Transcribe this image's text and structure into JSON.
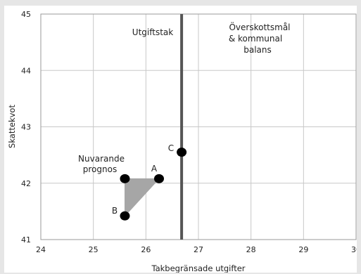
{
  "chart_data": {
    "type": "scatter",
    "xlabel": "Takbegränsade utgifter",
    "ylabel": "Skattekvot",
    "xlim": [
      24,
      30
    ],
    "ylim": [
      41,
      45
    ],
    "xticks": [
      "24",
      "25",
      "26",
      "27",
      "28",
      "29",
      "30"
    ],
    "yticks": [
      "41",
      "42",
      "43",
      "44",
      "45"
    ],
    "grid": true,
    "points": [
      {
        "label": "",
        "x": 25.6,
        "y": 42.08
      },
      {
        "label": "A",
        "x": 26.25,
        "y": 42.08
      },
      {
        "label": "B",
        "x": 25.6,
        "y": 41.42
      },
      {
        "label": "C",
        "x": 26.68,
        "y": 42.55
      }
    ],
    "shaded_region": [
      [
        25.6,
        42.08
      ],
      [
        26.25,
        42.08
      ],
      [
        25.6,
        41.42
      ]
    ],
    "vertical_line": {
      "x": 26.68,
      "label": "Utgiftstak"
    },
    "annotations": {
      "nuvarande": [
        "Nuvarande",
        "prognos"
      ],
      "overskott": [
        "Överskottsmål",
        "& kommunal",
        "balans"
      ]
    },
    "colors": {
      "points": "#000000",
      "region": "#a6a6a6",
      "line": "#555555",
      "grid": "#c8c8c8"
    }
  }
}
